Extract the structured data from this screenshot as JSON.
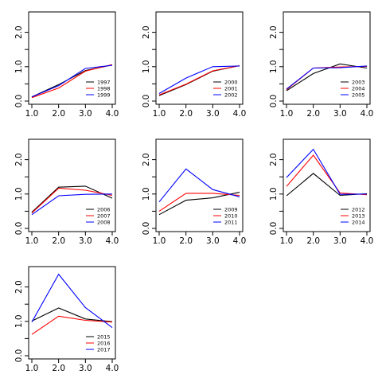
{
  "chart_data": [
    {
      "type": "line",
      "x": [
        1,
        2,
        3,
        4
      ],
      "xlim": [
        1,
        4
      ],
      "ylim": [
        0,
        2.5
      ],
      "xticks": [
        "1.0",
        "2.0",
        "3.0",
        "4.0"
      ],
      "yticks": [
        "0.0",
        "1.0",
        "2.0"
      ],
      "grid": false,
      "legend": "bottom-right",
      "series": [
        {
          "name": "1997",
          "color": "#000000",
          "values": [
            0.12,
            0.48,
            0.89,
            1.05
          ]
        },
        {
          "name": "1998",
          "color": "#ff0000",
          "values": [
            0.1,
            0.38,
            0.87,
            1.06
          ]
        },
        {
          "name": "1999",
          "color": "#0000ff",
          "values": [
            0.12,
            0.45,
            0.95,
            1.04
          ]
        }
      ]
    },
    {
      "type": "line",
      "x": [
        1,
        2,
        3,
        4
      ],
      "xlim": [
        1,
        4
      ],
      "ylim": [
        0,
        2.5
      ],
      "xticks": [
        "1.0",
        "2.0",
        "3.0",
        "4.0"
      ],
      "yticks": [
        "0.0",
        "1.0",
        "2.0"
      ],
      "grid": false,
      "legend": "bottom-right",
      "series": [
        {
          "name": "2000",
          "color": "#000000",
          "values": [
            0.16,
            0.48,
            0.87,
            1.03
          ]
        },
        {
          "name": "2001",
          "color": "#ff0000",
          "values": [
            0.18,
            0.49,
            0.88,
            1.03
          ]
        },
        {
          "name": "2002",
          "color": "#0000ff",
          "values": [
            0.22,
            0.67,
            1.0,
            1.02
          ]
        }
      ]
    },
    {
      "type": "line",
      "x": [
        1,
        2,
        3,
        4
      ],
      "xlim": [
        1,
        4
      ],
      "ylim": [
        0,
        2.5
      ],
      "xticks": [
        "1.0",
        "2.0",
        "3.0",
        "4.0"
      ],
      "yticks": [
        "0.0",
        "1.0",
        "2.0"
      ],
      "grid": false,
      "legend": "bottom-right",
      "series": [
        {
          "name": "2003",
          "color": "#000000",
          "values": [
            0.3,
            0.8,
            1.08,
            0.96
          ]
        },
        {
          "name": "2004",
          "color": "#ff0000",
          "values": [
            0.33,
            0.96,
            0.99,
            1.01
          ]
        },
        {
          "name": "2005",
          "color": "#0000ff",
          "values": [
            0.35,
            0.96,
            0.97,
            1.02
          ]
        }
      ]
    },
    {
      "type": "line",
      "x": [
        1,
        2,
        3,
        4
      ],
      "xlim": [
        1,
        4
      ],
      "ylim": [
        0,
        2.5
      ],
      "xticks": [
        "1.0",
        "2.0",
        "3.0",
        "4.0"
      ],
      "yticks": [
        "0.0",
        "1.0",
        "2.0"
      ],
      "grid": false,
      "legend": "bottom-right",
      "series": [
        {
          "name": "2006",
          "color": "#000000",
          "values": [
            0.47,
            1.2,
            1.23,
            0.88
          ]
        },
        {
          "name": "2007",
          "color": "#ff0000",
          "values": [
            0.45,
            1.17,
            1.11,
            0.96
          ]
        },
        {
          "name": "2008",
          "color": "#0000ff",
          "values": [
            0.4,
            0.95,
            0.99,
            1.0
          ]
        }
      ]
    },
    {
      "type": "line",
      "x": [
        1,
        2,
        3,
        4
      ],
      "xlim": [
        1,
        4
      ],
      "ylim": [
        0,
        2.5
      ],
      "xticks": [
        "1.0",
        "2.0",
        "3.0",
        "4.0"
      ],
      "yticks": [
        "0.0",
        "1.0",
        "2.0"
      ],
      "grid": false,
      "legend": "bottom-right",
      "series": [
        {
          "name": "2009",
          "color": "#000000",
          "values": [
            0.4,
            0.82,
            0.89,
            1.05
          ]
        },
        {
          "name": "2010",
          "color": "#ff0000",
          "values": [
            0.5,
            1.02,
            1.02,
            0.96
          ]
        },
        {
          "name": "2011",
          "color": "#0000ff",
          "values": [
            0.77,
            1.73,
            1.13,
            0.92
          ]
        }
      ]
    },
    {
      "type": "line",
      "x": [
        1,
        2,
        3,
        4
      ],
      "xlim": [
        1,
        4
      ],
      "ylim": [
        0,
        2.5
      ],
      "xticks": [
        "1.0",
        "2.0",
        "3.0",
        "4.0"
      ],
      "yticks": [
        "0.0",
        "1.0",
        "2.0"
      ],
      "grid": false,
      "legend": "bottom-right",
      "series": [
        {
          "name": "2012",
          "color": "#000000",
          "values": [
            0.95,
            1.6,
            0.96,
            1.01
          ]
        },
        {
          "name": "2013",
          "color": "#ff0000",
          "values": [
            1.22,
            2.13,
            1.03,
            0.98
          ]
        },
        {
          "name": "2014",
          "color": "#0000ff",
          "values": [
            1.48,
            2.3,
            0.99,
            1.0
          ]
        }
      ]
    },
    {
      "type": "line",
      "x": [
        1,
        2,
        3,
        4
      ],
      "xlim": [
        1,
        4
      ],
      "ylim": [
        0,
        2.5
      ],
      "xticks": [
        "1.0",
        "2.0",
        "3.0",
        "4.0"
      ],
      "yticks": [
        "0.0",
        "1.0",
        "2.0"
      ],
      "grid": false,
      "legend": "bottom-right",
      "series": [
        {
          "name": "2015",
          "color": "#000000",
          "values": [
            1.01,
            1.39,
            1.07,
            0.99
          ]
        },
        {
          "name": "2016",
          "color": "#ff0000",
          "values": [
            0.62,
            1.15,
            1.03,
            0.98
          ]
        },
        {
          "name": "2017",
          "color": "#0000ff",
          "values": [
            0.98,
            2.37,
            1.4,
            0.82
          ]
        }
      ]
    }
  ]
}
